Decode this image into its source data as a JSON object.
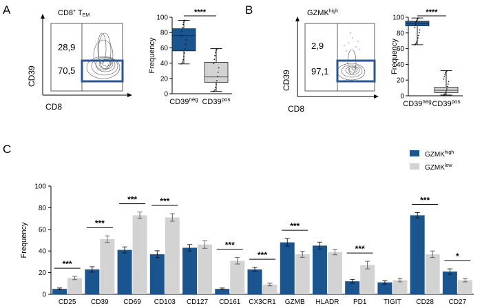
{
  "panel_a": {
    "letter": "A",
    "flow": {
      "title": "CD8",
      "title_sup": "+",
      "title_rest": " T",
      "title_sub": "EM",
      "xlabel": "CD8",
      "ylabel": "CD39",
      "gate_upper": "28,9",
      "gate_lower": "70,5"
    }
  },
  "panel_b": {
    "letter": "B",
    "flow": {
      "title": "GZMK",
      "title_sup": "high",
      "xlabel": "CD8",
      "ylabel": "CD39",
      "gate_upper": "2,9",
      "gate_lower": "97,1"
    }
  },
  "panel_c": {
    "letter": "C"
  },
  "colors": {
    "high": "#1a5590",
    "low": "#d3d3d3",
    "outline": "#2d5595"
  },
  "chart_data": [
    {
      "type": "box",
      "panel": "A",
      "ylabel": "Frequency",
      "ylim": [
        0,
        100
      ],
      "yticks": [
        0,
        20,
        40,
        60,
        80,
        100
      ],
      "significance": "****",
      "categories": [
        {
          "base": "CD39",
          "sup": "neg"
        },
        {
          "base": "CD39",
          "sup": "pos"
        }
      ],
      "boxes": [
        {
          "min": 39,
          "q1": 56,
          "median": 76,
          "q3": 85,
          "max": 96,
          "color": "#1a5590"
        },
        {
          "min": 3,
          "q1": 15,
          "median": 22,
          "q3": 41,
          "max": 59,
          "color": "#d3d3d3"
        }
      ]
    },
    {
      "type": "box",
      "panel": "B",
      "ylabel": "Frequency",
      "ylim": [
        0,
        100
      ],
      "yticks": [
        0,
        20,
        40,
        60,
        80,
        100
      ],
      "significance": "****",
      "categories": [
        {
          "base": "CD39",
          "sup": "neg"
        },
        {
          "base": "CD39",
          "sup": "pos"
        }
      ],
      "boxes": [
        {
          "min": 65,
          "q1": 89,
          "median": 92,
          "q3": 95,
          "max": 99,
          "color": "#1a5590"
        },
        {
          "min": 1,
          "q1": 4,
          "median": 7,
          "q3": 11,
          "max": 32,
          "color": "#d3d3d3"
        }
      ]
    },
    {
      "type": "bar",
      "panel": "C",
      "ylabel": "Frequency",
      "ylim": [
        0,
        100
      ],
      "yticks": [
        0,
        20,
        40,
        60,
        80,
        100
      ],
      "categories": [
        "CD25",
        "CD39",
        "CD69",
        "CD103",
        "CD127",
        "CD161",
        "CX3CR1",
        "GZMB",
        "HLADR",
        "PD1",
        "TIGIT",
        "CD28",
        "CD27"
      ],
      "series": [
        {
          "name": "GZMK",
          "sup": "high",
          "color": "#1a5590",
          "values": [
            5,
            23,
            41,
            37,
            43,
            5,
            23,
            48,
            45,
            12,
            11,
            73,
            21
          ],
          "errors": [
            0.8,
            2.5,
            2.8,
            3.2,
            3,
            0.8,
            1.8,
            3.5,
            3.2,
            1.8,
            1.5,
            2.5,
            2.5
          ]
        },
        {
          "name": "GZMK",
          "sup": "low",
          "color": "#d3d3d3",
          "values": [
            15,
            51,
            73,
            71,
            46,
            31,
            9,
            37,
            39,
            27,
            13,
            37,
            13
          ],
          "errors": [
            1.5,
            3,
            3,
            3.5,
            3.5,
            3,
            1.2,
            2.8,
            2.5,
            3.5,
            1.5,
            3,
            1.5
          ]
        }
      ],
      "significance": [
        "***",
        "***",
        "***",
        "***",
        "",
        "***",
        "***",
        "***",
        "",
        "***",
        "",
        "***",
        "*"
      ]
    }
  ]
}
